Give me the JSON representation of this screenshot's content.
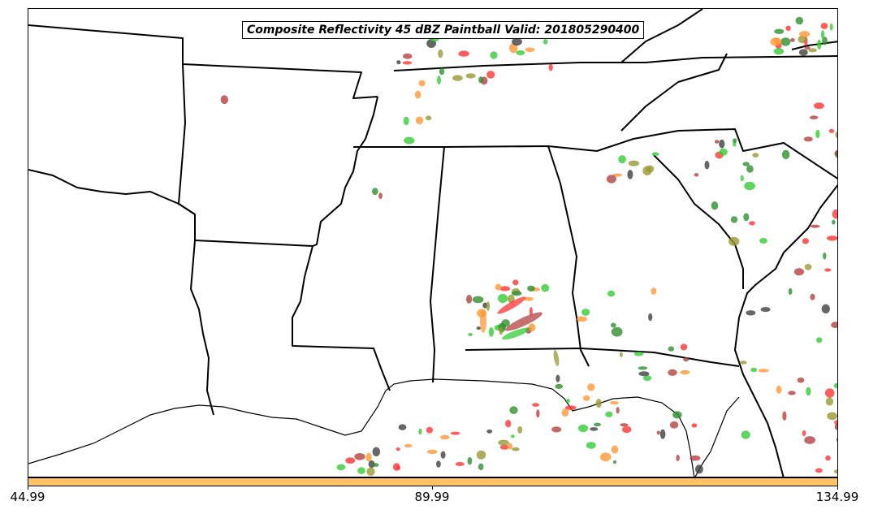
{
  "title": "Composite Reflectivity 45 dBZ Paintball Valid: 201805290400",
  "colorbar": {
    "color": "#ffc266",
    "ticks": [
      "44.99",
      "89.99",
      "134.99"
    ]
  },
  "paint_colors": [
    "#ff3333",
    "#b34040",
    "#33cc33",
    "#999933",
    "#ff9933",
    "#404040",
    "#2f8f2f"
  ]
}
